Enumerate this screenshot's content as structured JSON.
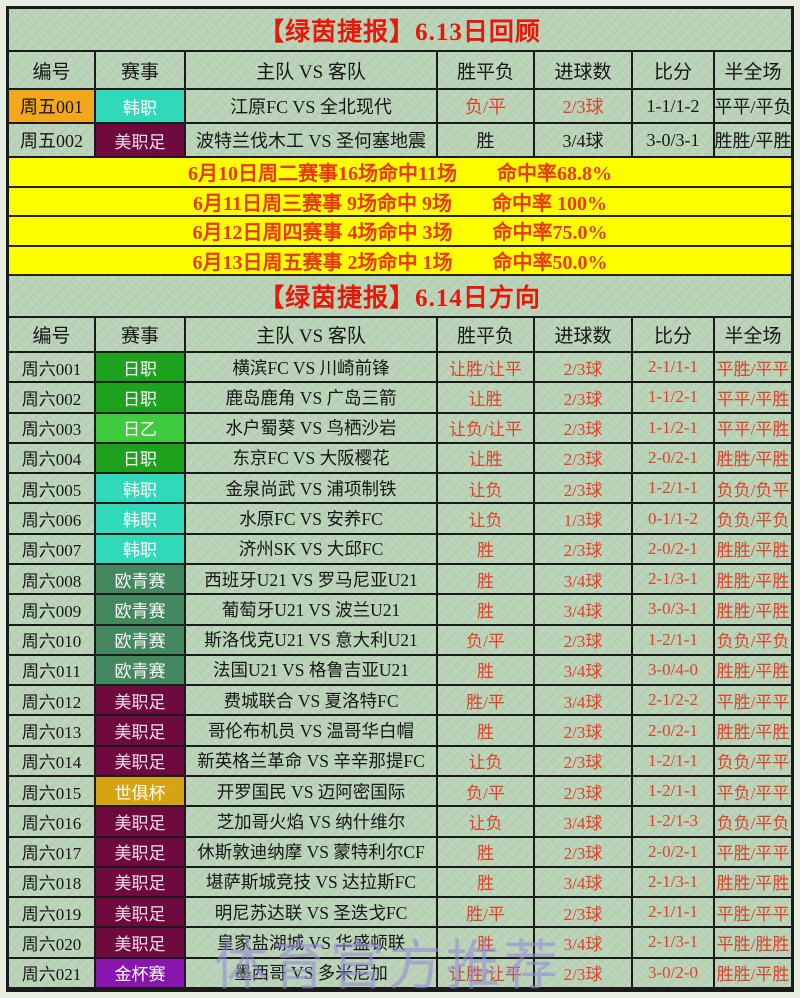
{
  "page": {
    "title_review": "【绿茵捷报】6.13日回顾",
    "title_direction": "【绿茵捷报】6.14日方向",
    "watermark": "体育官方推荐"
  },
  "columns": [
    "编号",
    "赛事",
    "主队 VS 客队",
    "胜平负",
    "进球数",
    "比分",
    "半全场"
  ],
  "colors": {
    "page_green": "#b9d3b7",
    "title_red": "#e81708",
    "value_red": "#df4129",
    "banner_bg": "#ffff02",
    "banner_red": "#e8380e",
    "highlight_orange": "#f2a71d",
    "watermark": "rgba(146,138,216,0.58)"
  },
  "league_colors": {
    "韩职": {
      "bg": "#2fd9b9",
      "fg": "#ffffff"
    },
    "美职足": {
      "bg": "#6e0a3d",
      "fg": "#f6dce8"
    },
    "日职": {
      "bg": "#1ca21c",
      "fg": "#ffffff"
    },
    "日乙": {
      "bg": "#3ecb3e",
      "fg": "#ffffff"
    },
    "欧青赛": {
      "bg": "#43885f",
      "fg": "#ffffff"
    },
    "世俱杯": {
      "bg": "#d5a413",
      "fg": "#ffffff"
    },
    "金杯赛": {
      "bg": "#8a14ae",
      "fg": "#ffffff"
    }
  },
  "review_table": {
    "rows": [
      {
        "id": "周五001",
        "id_bg": "#f2a71d",
        "league": "韩职",
        "teams": "江原FC VS 全北现代",
        "wdl": "负/平",
        "goals": "2/3球",
        "score": "1-1/1-2",
        "half_full": "平平/平负",
        "red_cols": [
          "wdl",
          "goals"
        ]
      },
      {
        "id": "周五002",
        "league": "美职足",
        "teams": "波特兰伐木工 VS 圣何塞地震",
        "wdl": "胜",
        "goals": "3/4球",
        "score": "3-0/3-1",
        "half_full": "胜胜/平胜",
        "red_cols": []
      }
    ]
  },
  "record_banners": [
    "6月10日周二赛事16场命中11场　　命中率68.8%",
    "6月11日周三赛事 9场命中 9场　　命中率 100%",
    "6月12日周四赛事 4场命中 3场　　命中率75.0%",
    "6月13日周五赛事 2场命中 1场　　命中率50.0%"
  ],
  "direction_table": {
    "red_cols": [
      "wdl",
      "goals",
      "score",
      "half_full"
    ],
    "rows": [
      {
        "id": "周六001",
        "league": "日职",
        "teams": "横滨FC VS 川崎前锋",
        "wdl": "让胜/让平",
        "goals": "2/3球",
        "score": "2-1/1-1",
        "half_full": "平胜/平平"
      },
      {
        "id": "周六002",
        "league": "日职",
        "teams": "鹿岛鹿角 VS 广岛三箭",
        "wdl": "让胜",
        "goals": "2/3球",
        "score": "1-1/2-1",
        "half_full": "平平/平胜"
      },
      {
        "id": "周六003",
        "league": "日乙",
        "teams": "水户蜀葵 VS 鸟栖沙岩",
        "wdl": "让负/让平",
        "goals": "2/3球",
        "score": "1-1/2-1",
        "half_full": "平平/平胜"
      },
      {
        "id": "周六004",
        "league": "日职",
        "teams": "东京FC VS 大阪樱花",
        "wdl": "让胜",
        "goals": "2/3球",
        "score": "2-0/2-1",
        "half_full": "胜胜/平胜"
      },
      {
        "id": "周六005",
        "league": "韩职",
        "teams": "金泉尚武 VS 浦项制铁",
        "wdl": "让负",
        "goals": "2/3球",
        "score": "1-2/1-1",
        "half_full": "负负/负平"
      },
      {
        "id": "周六006",
        "league": "韩职",
        "teams": "水原FC VS 安养FC",
        "wdl": "让负",
        "goals": "1/3球",
        "score": "0-1/1-2",
        "half_full": "负负/平负"
      },
      {
        "id": "周六007",
        "league": "韩职",
        "teams": "济州SK VS 大邱FC",
        "wdl": "胜",
        "goals": "2/3球",
        "score": "2-0/2-1",
        "half_full": "胜胜/平胜"
      },
      {
        "id": "周六008",
        "league": "欧青赛",
        "teams": "西班牙U21 VS 罗马尼亚U21",
        "wdl": "胜",
        "goals": "3/4球",
        "score": "2-1/3-1",
        "half_full": "胜胜/平胜"
      },
      {
        "id": "周六009",
        "league": "欧青赛",
        "teams": "葡萄牙U21 VS 波兰U21",
        "wdl": "胜",
        "goals": "3/4球",
        "score": "3-0/3-1",
        "half_full": "胜胜/平胜"
      },
      {
        "id": "周六010",
        "league": "欧青赛",
        "teams": "斯洛伐克U21 VS 意大利U21",
        "wdl": "负/平",
        "goals": "2/3球",
        "score": "1-2/1-1",
        "half_full": "负负/平负"
      },
      {
        "id": "周六011",
        "league": "欧青赛",
        "teams": "法国U21 VS 格鲁吉亚U21",
        "wdl": "胜",
        "goals": "3/4球",
        "score": "3-0/4-0",
        "half_full": "胜胜/平胜"
      },
      {
        "id": "周六012",
        "league": "美职足",
        "teams": "费城联合 VS 夏洛特FC",
        "wdl": "胜/平",
        "goals": "3/4球",
        "score": "2-1/2-2",
        "half_full": "平胜/平平"
      },
      {
        "id": "周六013",
        "league": "美职足",
        "teams": "哥伦布机员 VS 温哥华白帽",
        "wdl": "胜",
        "goals": "2/3球",
        "score": "2-0/2-1",
        "half_full": "胜胜/平胜"
      },
      {
        "id": "周六014",
        "league": "美职足",
        "teams": "新英格兰革命 VS 辛辛那提FC",
        "wdl": "让负",
        "goals": "2/3球",
        "score": "1-2/1-1",
        "half_full": "负负/平平"
      },
      {
        "id": "周六015",
        "league": "世俱杯",
        "teams": "开罗国民 VS 迈阿密国际",
        "wdl": "负/平",
        "goals": "2/3球",
        "score": "1-2/1-1",
        "half_full": "平负/平平"
      },
      {
        "id": "周六016",
        "league": "美职足",
        "teams": "芝加哥火焰 VS 纳什维尔",
        "wdl": "让负",
        "goals": "3/4球",
        "score": "1-2/1-3",
        "half_full": "负负/平负"
      },
      {
        "id": "周六017",
        "league": "美职足",
        "teams": "休斯敦迪纳摩 VS 蒙特利尔CF",
        "wdl": "胜",
        "goals": "2/3球",
        "score": "2-0/2-1",
        "half_full": "平胜/平平"
      },
      {
        "id": "周六018",
        "league": "美职足",
        "teams": "堪萨斯城竞技 VS 达拉斯FC",
        "wdl": "胜",
        "goals": "3/4球",
        "score": "2-1/3-1",
        "half_full": "胜胜/平胜"
      },
      {
        "id": "周六019",
        "league": "美职足",
        "teams": "明尼苏达联 VS 圣迭戈FC",
        "wdl": "胜/平",
        "goals": "2/3球",
        "score": "2-1/1-1",
        "half_full": "平胜/平平"
      },
      {
        "id": "周六020",
        "league": "美职足",
        "teams": "皇家盐湖城 VS 华盛顿联",
        "wdl": "胜",
        "goals": "3/4球",
        "score": "2-1/3-1",
        "half_full": "平胜/胜胜"
      },
      {
        "id": "周六021",
        "league": "金杯赛",
        "teams": "墨西哥 VS 多米尼加",
        "wdl": "让胜/让平",
        "goals": "2/3球",
        "score": "3-0/2-0",
        "half_full": "胜胜/平胜"
      }
    ]
  }
}
